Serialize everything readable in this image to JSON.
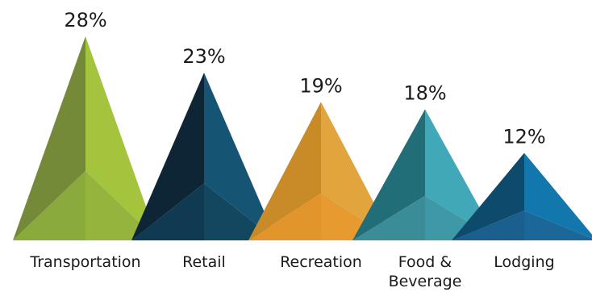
{
  "chart_data": {
    "type": "bar",
    "title": "",
    "xlabel": "",
    "ylabel": "",
    "ylim": [
      0,
      28
    ],
    "grid": false,
    "legend": "none",
    "categories": [
      {
        "label": [
          "Transportation"
        ],
        "value": 28,
        "value_label": "28%",
        "colors": {
          "left": "#748a39",
          "right": "#a3c43c",
          "bottom": "#8aab3c",
          "bottom_right": "#94b43e"
        }
      },
      {
        "label": [
          "Retail"
        ],
        "value": 23,
        "value_label": "23%",
        "colors": {
          "left": "#0e2535",
          "right": "#165473",
          "bottom": "#103a52",
          "bottom_right": "#13465f"
        }
      },
      {
        "label": [
          "Recreation"
        ],
        "value": 19,
        "value_label": "19%",
        "colors": {
          "left": "#c98a28",
          "right": "#e2a43c",
          "bottom": "#e2952a",
          "bottom_right": "#e69a2f"
        }
      },
      {
        "label": [
          "Food &",
          "Beverage"
        ],
        "value": 18,
        "value_label": "18%",
        "colors": {
          "left": "#216d78",
          "right": "#41a8b8",
          "bottom": "#3a8c98",
          "bottom_right": "#3f98a5"
        }
      },
      {
        "label": [
          "Lodging"
        ],
        "value": 12,
        "value_label": "12%",
        "colors": {
          "left": "#0d4a6c",
          "right": "#1277ad",
          "bottom": "#1a5f8e",
          "bottom_right": "#1b679a"
        }
      }
    ]
  }
}
